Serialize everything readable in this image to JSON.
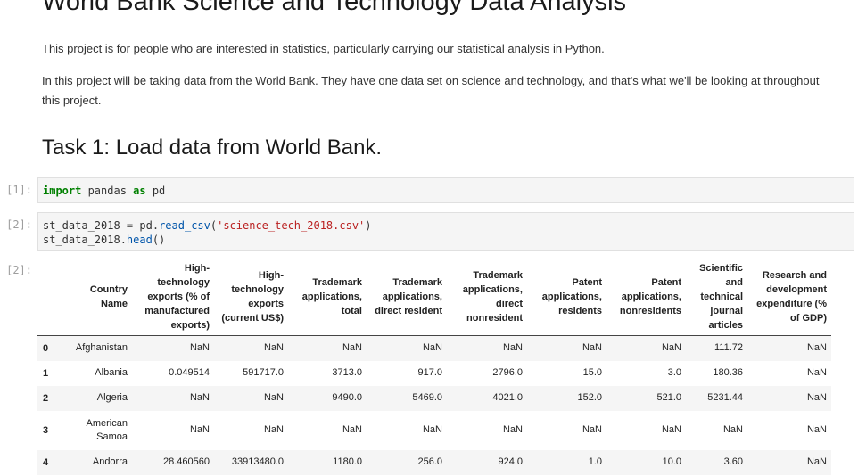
{
  "notebook": {
    "title": "World Bank Science and Technology Data Analysis",
    "paragraph1": "This project is for people who are interested in statistics, particularly carrying our statistical analysis in Python.",
    "paragraph2": "In this project will be taking data from the World Bank. They have one data set on science and technology, and that's what we'll be looking at throughout this project.",
    "task_heading": "Task 1: Load data from World Bank."
  },
  "cells": [
    {
      "prompt": "[1]:"
    },
    {
      "prompt": "[2]:"
    },
    {
      "prompt": "[2]:"
    }
  ],
  "code": {
    "cell1": {
      "kw1": "import",
      "module": " pandas ",
      "kw2": "as",
      "alias": " pd"
    },
    "cell2": {
      "var": "st_data_2018",
      "eq": " = ",
      "obj": "pd.",
      "func": "read_csv",
      "open": "(",
      "arg": "'science_tech_2018.csv'",
      "close": ")",
      "line2_var": "st_data_2018.",
      "line2_func": "head",
      "line2_paren": "()"
    }
  },
  "dataframe": {
    "columns": [
      "",
      "Country Name",
      "High-technology exports (% of manufactured exports)",
      "High-technology exports (current US$)",
      "Trademark applications, total",
      "Trademark applications, direct resident",
      "Trademark applications, direct nonresident",
      "Patent applications, residents",
      "Patent applications, nonresidents",
      "Scientific and technical journal articles",
      "Research and development expenditure (% of GDP)"
    ],
    "rows": [
      [
        "0",
        "Afghanistan",
        "NaN",
        "NaN",
        "NaN",
        "NaN",
        "NaN",
        "NaN",
        "NaN",
        "111.72",
        "NaN"
      ],
      [
        "1",
        "Albania",
        "0.049514",
        "591717.0",
        "3713.0",
        "917.0",
        "2796.0",
        "15.0",
        "3.0",
        "180.36",
        "NaN"
      ],
      [
        "2",
        "Algeria",
        "NaN",
        "NaN",
        "9490.0",
        "5469.0",
        "4021.0",
        "152.0",
        "521.0",
        "5231.44",
        "NaN"
      ],
      [
        "3",
        "American Samoa",
        "NaN",
        "NaN",
        "NaN",
        "NaN",
        "NaN",
        "NaN",
        "NaN",
        "NaN",
        "NaN"
      ],
      [
        "4",
        "Andorra",
        "28.460560",
        "33913480.0",
        "1180.0",
        "256.0",
        "924.0",
        "1.0",
        "10.0",
        "3.60",
        "NaN"
      ]
    ]
  }
}
